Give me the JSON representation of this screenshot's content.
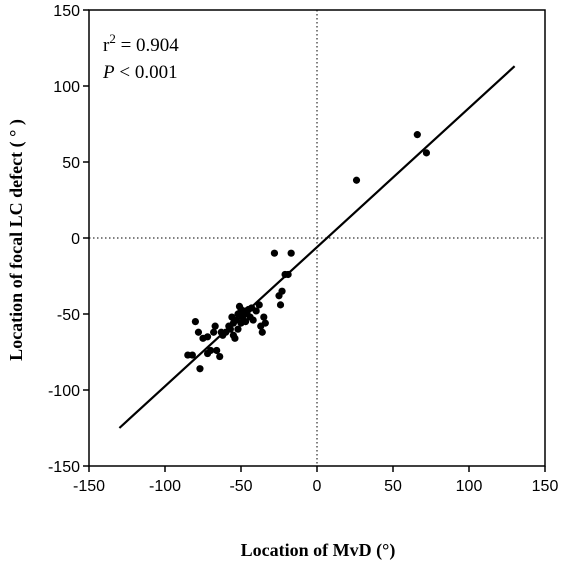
{
  "chart_data": {
    "type": "scatter",
    "title": "",
    "xlabel": "Location of MvD (°)",
    "ylabel": "Location of focal LC defect ( ° )",
    "xlim": [
      -150,
      150
    ],
    "ylim": [
      -150,
      150
    ],
    "xticks": [
      "-150",
      "-100",
      "-50",
      "0",
      "50",
      "100",
      "150"
    ],
    "yticks": [
      "-150",
      "-100",
      "-50",
      "0",
      "50",
      "100",
      "150"
    ],
    "grid": false,
    "reference_lines": {
      "x": 0,
      "y": 0,
      "style": "dotted"
    },
    "annotations": {
      "r_text": "r",
      "r_sup": "2",
      "r_value": " = 0.904",
      "p_symbol": "P",
      "p_value": " < 0.001"
    },
    "regression_line": {
      "x": [
        -130,
        130
      ],
      "y": [
        -125,
        113
      ]
    },
    "series": [
      {
        "points": [
          [
            -85,
            -77
          ],
          [
            -82,
            -77
          ],
          [
            -80,
            -55
          ],
          [
            -78,
            -62
          ],
          [
            -77,
            -86
          ],
          [
            -75,
            -66
          ],
          [
            -72,
            -65
          ],
          [
            -72,
            -76
          ],
          [
            -70,
            -74
          ],
          [
            -68,
            -62
          ],
          [
            -67,
            -58
          ],
          [
            -66,
            -74
          ],
          [
            -64,
            -78
          ],
          [
            -63,
            -62
          ],
          [
            -62,
            -64
          ],
          [
            -60,
            -62
          ],
          [
            -58,
            -58
          ],
          [
            -57,
            -60
          ],
          [
            -56,
            -52
          ],
          [
            -55,
            -64
          ],
          [
            -55,
            -56
          ],
          [
            -54,
            -66
          ],
          [
            -53,
            -54
          ],
          [
            -52,
            -50
          ],
          [
            -52,
            -60
          ],
          [
            -51,
            -45
          ],
          [
            -50,
            -47
          ],
          [
            -50,
            -56
          ],
          [
            -49,
            -52
          ],
          [
            -48,
            -50
          ],
          [
            -47,
            -48
          ],
          [
            -47,
            -55
          ],
          [
            -46,
            -50
          ],
          [
            -45,
            -47
          ],
          [
            -44,
            -52
          ],
          [
            -43,
            -46
          ],
          [
            -42,
            -54
          ],
          [
            -40,
            -48
          ],
          [
            -38,
            -44
          ],
          [
            -37,
            -58
          ],
          [
            -36,
            -62
          ],
          [
            -35,
            -52
          ],
          [
            -34,
            -56
          ],
          [
            -28,
            -10
          ],
          [
            -25,
            -38
          ],
          [
            -24,
            -44
          ],
          [
            -23,
            -35
          ],
          [
            -21,
            -24
          ],
          [
            -19,
            -24
          ],
          [
            -17,
            -10
          ],
          [
            26,
            38
          ],
          [
            66,
            68
          ],
          [
            72,
            56
          ]
        ]
      }
    ]
  }
}
